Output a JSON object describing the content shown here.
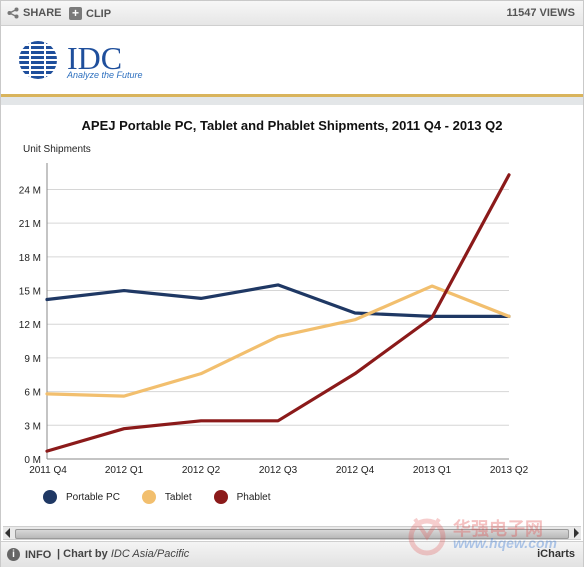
{
  "toolbar": {
    "share_label": "SHARE",
    "clip_label": "CLIP",
    "views_label": "11547 VIEWS"
  },
  "logo": {
    "text": "IDC",
    "tagline": "Analyze the Future"
  },
  "chart_data": {
    "type": "line",
    "title": "APEJ Portable PC, Tablet and Phablet Shipments, 2011 Q4 - 2013 Q2",
    "ylabel": "Unit Shipments",
    "xlabel": "",
    "categories": [
      "2011 Q4",
      "2012 Q1",
      "2012 Q2",
      "2012 Q3",
      "2012 Q4",
      "2013 Q1",
      "2013 Q2"
    ],
    "ylim": [
      0,
      26
    ],
    "yticks": [
      0,
      3,
      6,
      9,
      12,
      15,
      18,
      21,
      24
    ],
    "ytick_labels": [
      "0 M",
      "3 M",
      "6 M",
      "9 M",
      "12 M",
      "15 M",
      "18 M",
      "21 M",
      "24 M"
    ],
    "grid": true,
    "legend_position": "bottom-left",
    "series": [
      {
        "name": "Portable PC",
        "color": "#1f3864",
        "values": [
          14.2,
          15.0,
          14.3,
          15.5,
          13.0,
          12.7,
          12.7
        ]
      },
      {
        "name": "Tablet",
        "color": "#f2bf6e",
        "values": [
          5.8,
          5.6,
          7.6,
          10.9,
          12.4,
          15.4,
          12.7
        ]
      },
      {
        "name": "Phablet",
        "color": "#8b1a1a",
        "values": [
          0.7,
          2.7,
          3.4,
          3.4,
          7.6,
          12.6,
          25.3
        ]
      }
    ]
  },
  "footer": {
    "info_label": "INFO",
    "chartby_prefix": "| Chart by ",
    "chartby_org": "IDC Asia/Pacific",
    "brand_label": "iCharts"
  },
  "watermark": {
    "text": "华强电子网",
    "url": "www.hqew.com"
  }
}
